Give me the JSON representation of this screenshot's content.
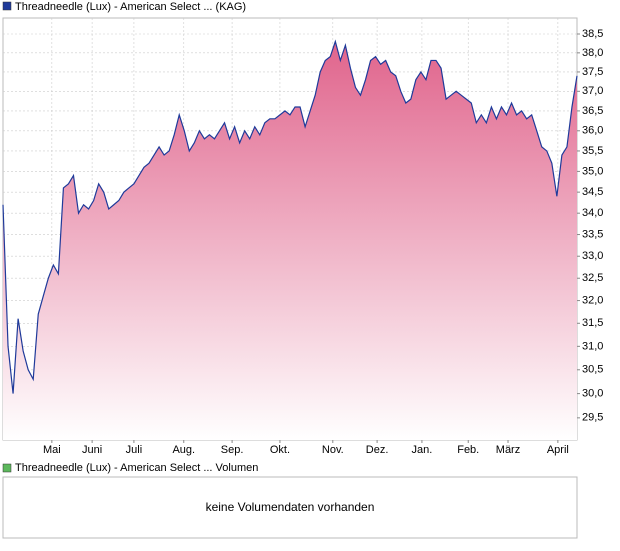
{
  "chart_data": {
    "type": "area",
    "log_scale": true,
    "grid": true,
    "series": [
      {
        "name": "Threadneedle (Lux) - American Select ... (KAG)",
        "color": "#1f3a9a",
        "fill_color": "#e0648c",
        "values": [
          34.2,
          31.0,
          30.0,
          31.6,
          30.9,
          30.5,
          30.3,
          31.7,
          32.1,
          32.5,
          32.8,
          32.6,
          34.6,
          34.7,
          34.9,
          34.0,
          34.2,
          34.1,
          34.3,
          34.7,
          34.5,
          34.1,
          34.2,
          34.3,
          34.5,
          34.6,
          34.7,
          34.9,
          35.1,
          35.2,
          35.4,
          35.6,
          35.4,
          35.5,
          35.9,
          36.4,
          36.0,
          35.5,
          35.7,
          36.0,
          35.8,
          35.9,
          35.8,
          36.0,
          36.2,
          35.8,
          36.1,
          35.7,
          36.0,
          35.8,
          36.1,
          35.9,
          36.2,
          36.3,
          36.3,
          36.4,
          36.5,
          36.4,
          36.6,
          36.6,
          36.1,
          36.5,
          36.9,
          37.5,
          37.8,
          37.9,
          38.3,
          37.8,
          38.2,
          37.6,
          37.1,
          36.9,
          37.3,
          37.8,
          37.9,
          37.7,
          37.8,
          37.5,
          37.4,
          37.0,
          36.7,
          36.8,
          37.3,
          37.5,
          37.3,
          37.8,
          37.8,
          37.6,
          36.8,
          36.9,
          37.0,
          36.9,
          36.8,
          36.7,
          36.2,
          36.4,
          36.2,
          36.6,
          36.3,
          36.6,
          36.4,
          36.7,
          36.4,
          36.5,
          36.3,
          36.4,
          36.0,
          35.6,
          35.5,
          35.2,
          34.4,
          35.4,
          35.6,
          36.6,
          37.4
        ]
      }
    ],
    "xlim": [
      0,
      114
    ],
    "xticks": [
      {
        "value": 9.7,
        "label": "Mai"
      },
      {
        "value": 17.7,
        "label": "Juni"
      },
      {
        "value": 26,
        "label": "Juli"
      },
      {
        "value": 35.9,
        "label": "Aug."
      },
      {
        "value": 45.5,
        "label": "Sep."
      },
      {
        "value": 55,
        "label": "Okt."
      },
      {
        "value": 65.5,
        "label": "Nov."
      },
      {
        "value": 74.3,
        "label": "Dez."
      },
      {
        "value": 83.2,
        "label": "Jan."
      },
      {
        "value": 92.4,
        "label": "Feb."
      },
      {
        "value": 100.3,
        "label": "März"
      },
      {
        "value": 110.2,
        "label": "April"
      }
    ],
    "ylim": [
      29.05,
      38.93
    ],
    "yticks": [
      {
        "value": 29.5,
        "label": "29,5"
      },
      {
        "value": 30,
        "label": "30,0"
      },
      {
        "value": 30.5,
        "label": "30,5"
      },
      {
        "value": 31,
        "label": "31,0"
      },
      {
        "value": 31.5,
        "label": "31,5"
      },
      {
        "value": 32,
        "label": "32,0"
      },
      {
        "value": 32.5,
        "label": "32,5"
      },
      {
        "value": 33,
        "label": "33,0"
      },
      {
        "value": 33.5,
        "label": "33,5"
      },
      {
        "value": 34,
        "label": "34,0"
      },
      {
        "value": 34.5,
        "label": "34,5"
      },
      {
        "value": 35,
        "label": "35,0"
      },
      {
        "value": 35.5,
        "label": "35,5"
      },
      {
        "value": 36,
        "label": "36,0"
      },
      {
        "value": 36.5,
        "label": "36,5"
      },
      {
        "value": 37,
        "label": "37,0"
      },
      {
        "value": 37.5,
        "label": "37,5"
      },
      {
        "value": 38,
        "label": "38,0"
      },
      {
        "value": 38.5,
        "label": "38,5"
      }
    ]
  },
  "volume_panel": {
    "legend": "Threadneedle (Lux) - American Select ... Volumen",
    "legend_color": "#5cb85c",
    "message": "keine Volumendaten vorhanden"
  }
}
